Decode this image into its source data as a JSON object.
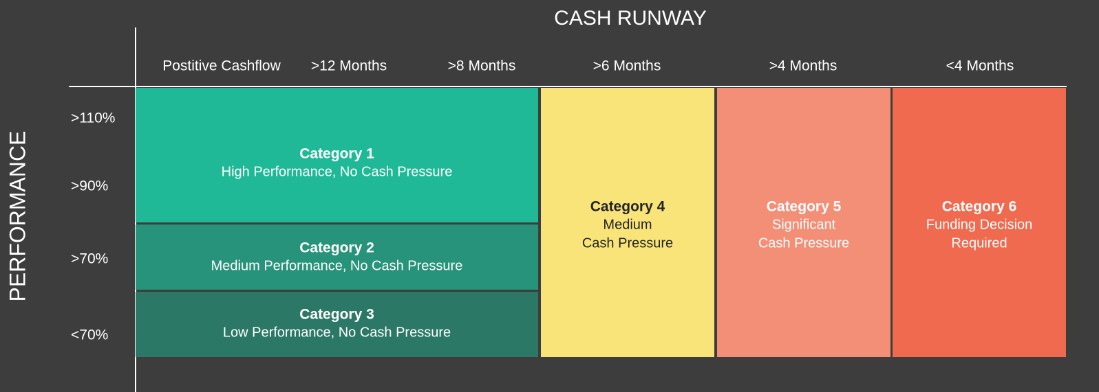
{
  "title": "CASH RUNWAY",
  "y_axis_label": "PERFORMANCE",
  "columns": [
    "Postitive Cashflow",
    ">12 Months",
    ">8 Months",
    ">6 Months",
    ">4 Months",
    "<4 Months"
  ],
  "rows": [
    ">110%",
    ">90%",
    ">70%",
    "<70%"
  ],
  "categories": [
    {
      "title": "Category 1",
      "lines": [
        "High Performance, No Cash Pressure"
      ]
    },
    {
      "title": "Category 2",
      "lines": [
        "Medium Performance, No Cash Pressure"
      ]
    },
    {
      "title": "Category 3",
      "lines": [
        "Low Performance, No Cash Pressure"
      ]
    },
    {
      "title": "Category 4",
      "lines": [
        "Medium",
        "Cash Pressure"
      ]
    },
    {
      "title": "Category 5",
      "lines": [
        "Significant",
        "Cash Pressure"
      ]
    },
    {
      "title": "Category 6",
      "lines": [
        "Funding Decision",
        "Required"
      ]
    }
  ]
}
